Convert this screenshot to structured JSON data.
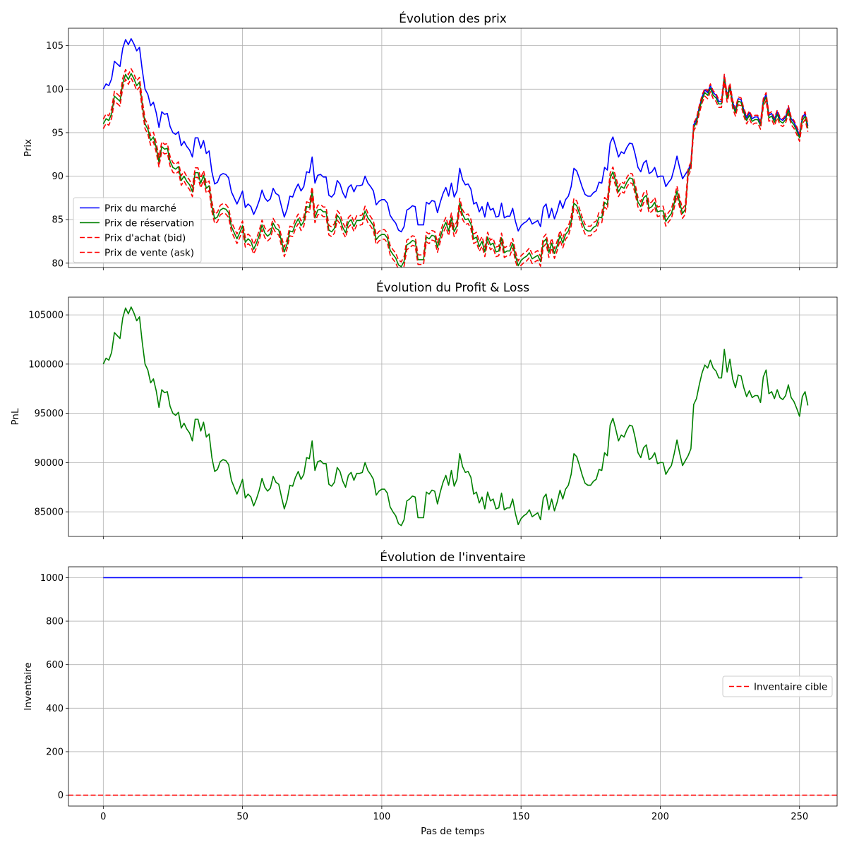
{
  "chart_data": [
    {
      "type": "line",
      "title": "Évolution des prix",
      "xlabel": "",
      "ylabel": "Prix",
      "xlim": [
        -12.5,
        263.5
      ],
      "ylim": [
        79.5,
        107.0
      ],
      "xticks": [
        0,
        50,
        100,
        150,
        200,
        250
      ],
      "yticks": [
        80,
        85,
        90,
        95,
        100,
        105
      ],
      "show_xtick_labels": false,
      "grid": true,
      "legend_position": "lower left",
      "series": [
        {
          "name": "Prix du marché",
          "color": "#0000ff",
          "style": "solid",
          "derive": {
            "from": "pnl",
            "scale": 0.001,
            "offset": 0
          }
        },
        {
          "name": "Prix de réservation",
          "color": "#008000",
          "style": "solid",
          "derive": {
            "from": "pnl",
            "scale": 0.001,
            "offset": -4.0,
            "converge_at": 210,
            "converge_offset": -0.3
          }
        },
        {
          "name": "Prix d'achat (bid)",
          "color": "#ff0000",
          "style": "dashed",
          "derive": {
            "from": "pnl",
            "scale": 0.001,
            "offset": -4.55,
            "converge_at": 210,
            "converge_offset": -0.7
          }
        },
        {
          "name": "Prix de vente (ask)",
          "color": "#ff0000",
          "style": "dashed",
          "derive": {
            "from": "pnl",
            "scale": 0.001,
            "offset": -3.45,
            "converge_at": 210,
            "converge_offset": 0.2
          }
        }
      ]
    },
    {
      "type": "line",
      "title": "Évolution du Profit & Loss",
      "xlabel": "",
      "ylabel": "PnL",
      "xlim": [
        -12.5,
        263.5
      ],
      "ylim": [
        82500,
        106800
      ],
      "xticks": [
        0,
        50,
        100,
        150,
        200,
        250
      ],
      "yticks": [
        85000,
        90000,
        95000,
        100000,
        105000
      ],
      "show_xtick_labels": false,
      "grid": true,
      "series": [
        {
          "name": "",
          "color": "#008000",
          "style": "solid",
          "x_start": 0,
          "values": [
            100000,
            100600,
            100400,
            101200,
            103200,
            102900,
            102600,
            104700,
            105700,
            105100,
            105800,
            105200,
            104400,
            104800,
            102200,
            100000,
            99400,
            98100,
            98500,
            97300,
            95600,
            97400,
            97100,
            97200,
            95700,
            95000,
            94800,
            95100,
            93500,
            94000,
            93400,
            93000,
            92200,
            94400,
            94400,
            93200,
            94100,
            92600,
            92900,
            90500,
            89100,
            89300,
            90100,
            90300,
            90200,
            89800,
            88200,
            87500,
            86800,
            87500,
            88300,
            86400,
            86800,
            86500,
            85600,
            86300,
            87200,
            88400,
            87500,
            87100,
            87400,
            88600,
            88000,
            87800,
            86500,
            85300,
            86200,
            87700,
            87600,
            88500,
            89100,
            88300,
            88800,
            90500,
            90400,
            92200,
            89200,
            90100,
            90200,
            89900,
            89900,
            87800,
            87600,
            88000,
            89500,
            89100,
            88100,
            87500,
            88700,
            89000,
            88200,
            88900,
            88900,
            89000,
            90000,
            89200,
            88800,
            88300,
            86700,
            87100,
            87300,
            87300,
            86900,
            85500,
            85000,
            84600,
            83800,
            83600,
            84200,
            86100,
            86300,
            86600,
            86500,
            84400,
            84400,
            84400,
            87000,
            86800,
            87200,
            87100,
            85800,
            87000,
            88000,
            88700,
            87700,
            89200,
            87600,
            88300,
            90900,
            89600,
            89000,
            89100,
            88500,
            86800,
            87000,
            85900,
            86500,
            85300,
            87000,
            86100,
            86300,
            85300,
            85400,
            86900,
            85200,
            85400,
            85400,
            86300,
            84800,
            83700,
            84300,
            84600,
            84800,
            85200,
            84500,
            84700,
            84900,
            84200,
            86400,
            86800,
            85200,
            86300,
            85100,
            86000,
            87200,
            86300,
            87300,
            87700,
            88800,
            90900,
            90600,
            89700,
            88700,
            87900,
            87700,
            87700,
            88100,
            88300,
            89300,
            89200,
            91000,
            90700,
            93800,
            94500,
            93400,
            92200,
            92800,
            92600,
            93300,
            93800,
            93700,
            92500,
            91000,
            90500,
            91500,
            91800,
            90300,
            90500,
            91000,
            89900,
            90000,
            90000,
            88800,
            89300,
            89700,
            90900,
            92300,
            90900,
            89700,
            90200,
            90700,
            91400,
            95900,
            96500,
            97900,
            99100,
            99900,
            99600,
            100400,
            99600,
            99300,
            98600,
            98600,
            101500,
            99200,
            100500,
            98500,
            97600,
            98900,
            98800,
            97600,
            96700,
            97300,
            96600,
            96800,
            96800,
            96100,
            98700,
            99400,
            97000,
            97200,
            96500,
            97400,
            96600,
            96400,
            96800,
            97900,
            96600,
            96200,
            95500,
            94700,
            96700,
            97200,
            95800
          ]
        }
      ]
    },
    {
      "type": "line",
      "title": "Évolution de l'inventaire",
      "xlabel": "Pas de temps",
      "ylabel": "Inventaire",
      "xlim": [
        -12.5,
        263.5
      ],
      "ylim": [
        -50,
        1050
      ],
      "xticks": [
        0,
        50,
        100,
        150,
        200,
        250
      ],
      "yticks": [
        0,
        200,
        400,
        600,
        800,
        1000
      ],
      "show_xtick_labels": true,
      "grid": true,
      "legend_position": "center right",
      "series": [
        {
          "name": "",
          "color": "#0000ff",
          "style": "solid",
          "x": [
            0,
            251
          ],
          "values": [
            1000,
            1000
          ]
        },
        {
          "name": "Inventaire cible",
          "color": "#ff0000",
          "style": "dashed",
          "hline": 0
        }
      ]
    }
  ]
}
